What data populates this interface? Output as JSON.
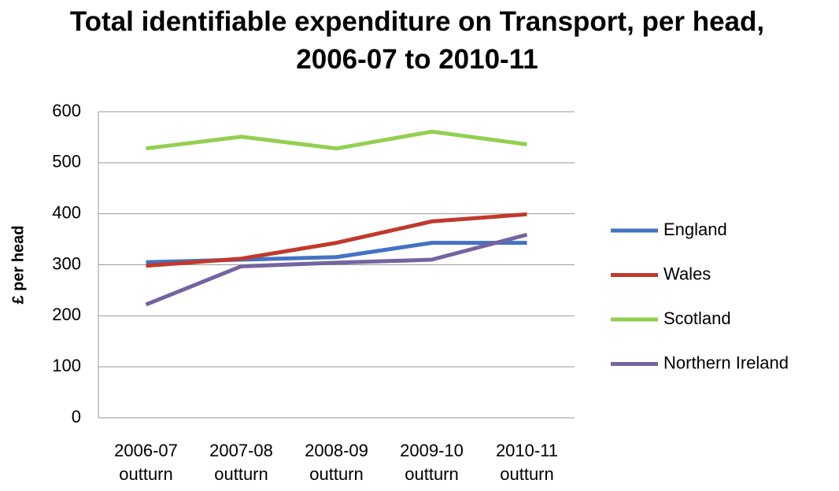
{
  "chart_data": {
    "type": "line",
    "title": "Total identifiable expenditure on Transport, per head, 2006-07 to 2010-11",
    "y_label": "£ per head",
    "categories": [
      "2006-07 outturn",
      "2007-08 outturn",
      "2008-09 outturn",
      "2009-10 outturn",
      "2010-11 outturn"
    ],
    "series": [
      {
        "name": "England",
        "color": "#4472c4",
        "values": [
          305,
          310,
          315,
          343,
          343
        ]
      },
      {
        "name": "Wales",
        "color": "#c0392b",
        "values": [
          298,
          312,
          343,
          385,
          399
        ]
      },
      {
        "name": "Scotland",
        "color": "#92d050",
        "values": [
          528,
          551,
          528,
          561,
          536
        ]
      },
      {
        "name": "Northern Ireland",
        "color": "#7464a0",
        "values": [
          222,
          297,
          304,
          310,
          359
        ]
      }
    ],
    "ylim": [
      0,
      600
    ],
    "yticks": [
      0,
      100,
      200,
      300,
      400,
      500,
      600
    ],
    "grid": true,
    "legend": "right"
  }
}
